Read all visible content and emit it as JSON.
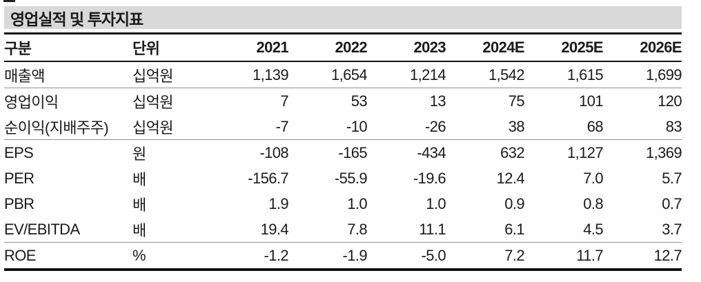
{
  "title": "영업실적 및 투자지표",
  "colors": {
    "title_bar_bg": "#d9d9d9",
    "text": "#1a1a1a",
    "heavy_rule": "#111111",
    "light_rule": "#8f8f8f"
  },
  "table": {
    "columns": [
      "구분",
      "단위",
      "2021",
      "2022",
      "2023",
      "2024E",
      "2025E",
      "2026E"
    ],
    "rows": [
      {
        "label": "매출액",
        "unit": "십억원",
        "values": [
          "1,139",
          "1,654",
          "1,214",
          "1,542",
          "1,615",
          "1,699"
        ],
        "group_end": true
      },
      {
        "label": "영업이익",
        "unit": "십억원",
        "values": [
          "7",
          "53",
          "13",
          "75",
          "101",
          "120"
        ],
        "group_end": false
      },
      {
        "label": "순이익(지배주주)",
        "unit": "십억원",
        "values": [
          "-7",
          "-10",
          "-26",
          "38",
          "68",
          "83"
        ],
        "group_end": true
      },
      {
        "label": "EPS",
        "unit": "원",
        "values": [
          "-108",
          "-165",
          "-434",
          "632",
          "1,127",
          "1,369"
        ],
        "group_end": false
      },
      {
        "label": "PER",
        "unit": "배",
        "values": [
          "-156.7",
          "-55.9",
          "-19.6",
          "12.4",
          "7.0",
          "5.7"
        ],
        "group_end": false
      },
      {
        "label": "PBR",
        "unit": "배",
        "values": [
          "1.9",
          "1.0",
          "1.0",
          "0.9",
          "0.8",
          "0.7"
        ],
        "group_end": false
      },
      {
        "label": "EV/EBITDA",
        "unit": "배",
        "values": [
          "19.4",
          "7.8",
          "11.1",
          "6.1",
          "4.5",
          "3.7"
        ],
        "group_end": true
      },
      {
        "label": "ROE",
        "unit": "%",
        "values": [
          "-1.2",
          "-1.9",
          "-5.0",
          "7.2",
          "11.7",
          "12.7"
        ],
        "group_end": false
      }
    ]
  }
}
